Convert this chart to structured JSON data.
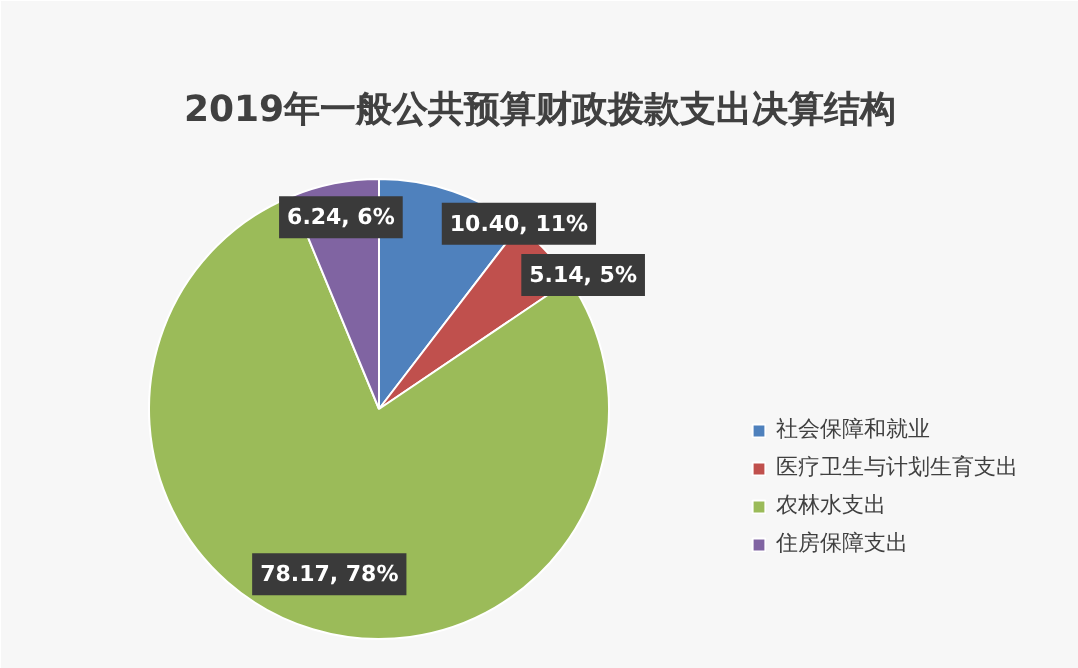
{
  "chart_data": {
    "type": "pie",
    "title": "2019年一般公共预算财政拨款支出决算结构",
    "categories": [
      "社会保障和就业",
      "医疗卫生与计划生育支出",
      "农林水支出",
      "住房保障支出"
    ],
    "values": [
      10.4,
      5.14,
      78.17,
      6.24
    ],
    "colors": [
      "#4f81bd",
      "#c0504d",
      "#9bbb59",
      "#8064a2"
    ],
    "value_labels": [
      "10.40, 11%",
      "5.14, 5%",
      "78.17, 78%",
      "6.24, 6%"
    ],
    "legend": "right"
  }
}
